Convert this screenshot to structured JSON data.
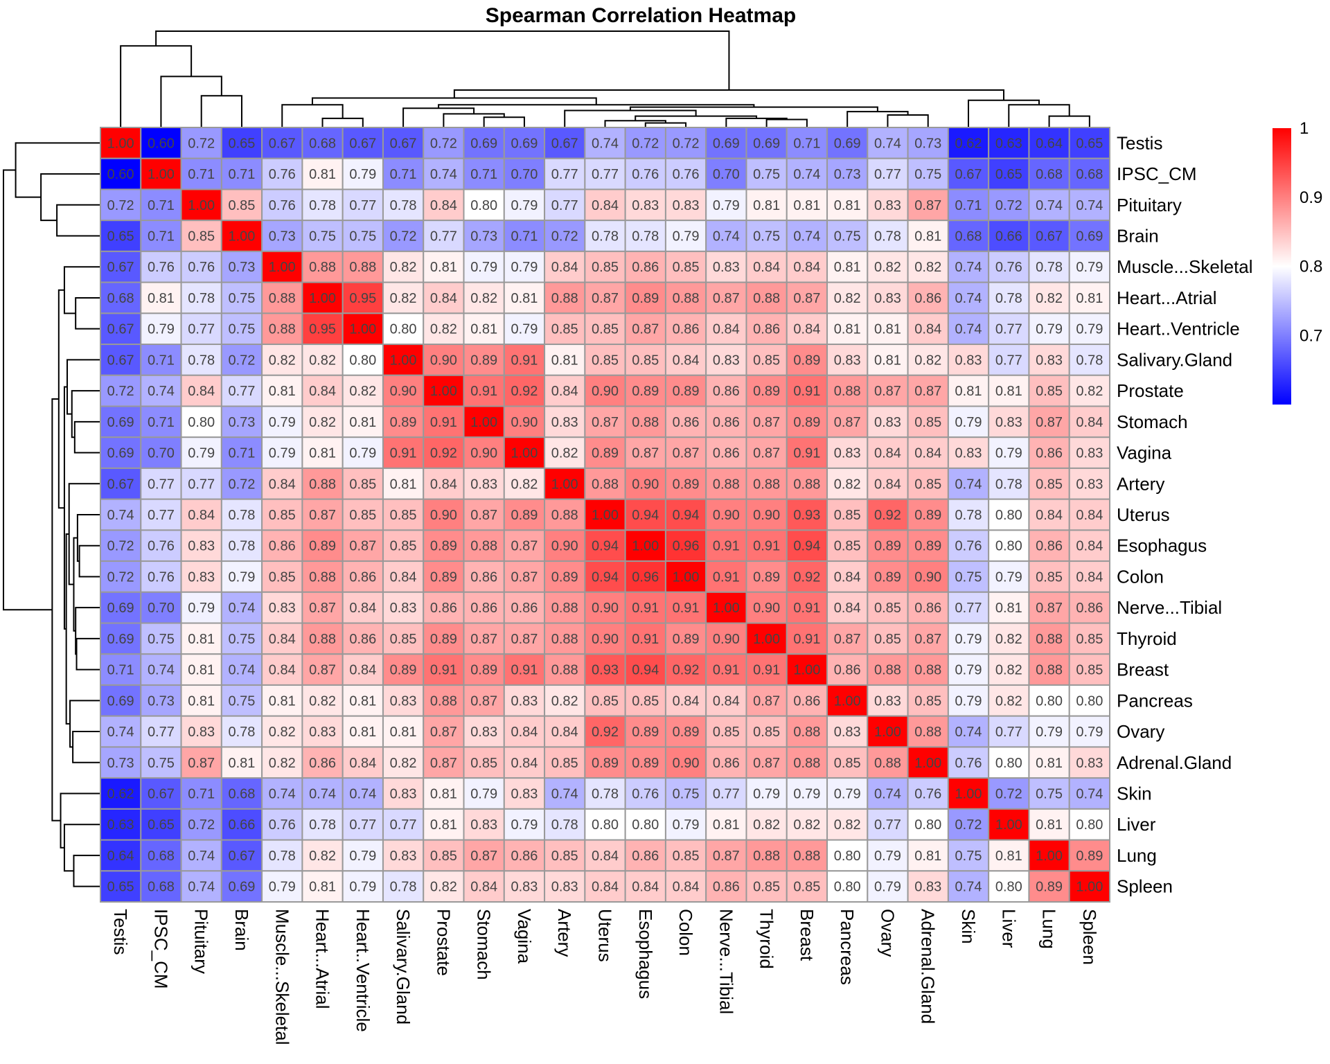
{
  "chart_data": {
    "type": "heatmap",
    "title": "Spearman Correlation Heatmap",
    "xlabel": "",
    "ylabel": "",
    "labels": [
      "Testis",
      "IPSC_CM",
      "Pituitary",
      "Brain",
      "Muscle...Skeletal",
      "Heart...Atrial",
      "Heart..Ventricle",
      "Salivary.Gland",
      "Prostate",
      "Stomach",
      "Vagina",
      "Artery",
      "Uterus",
      "Esophagus",
      "Colon",
      "Nerve...Tibial",
      "Thyroid",
      "Breast",
      "Pancreas",
      "Ovary",
      "Adrenal.Gland",
      "Skin",
      "Liver",
      "Lung",
      "Spleen"
    ],
    "values": [
      [
        1.0,
        0.6,
        0.72,
        0.65,
        0.67,
        0.68,
        0.67,
        0.67,
        0.72,
        0.69,
        0.69,
        0.67,
        0.74,
        0.72,
        0.72,
        0.69,
        0.69,
        0.71,
        0.69,
        0.74,
        0.73,
        0.62,
        0.63,
        0.64,
        0.65
      ],
      [
        0.6,
        1.0,
        0.71,
        0.71,
        0.76,
        0.81,
        0.79,
        0.71,
        0.74,
        0.71,
        0.7,
        0.77,
        0.77,
        0.76,
        0.76,
        0.7,
        0.75,
        0.74,
        0.73,
        0.77,
        0.75,
        0.67,
        0.65,
        0.68,
        0.68
      ],
      [
        0.72,
        0.71,
        1.0,
        0.85,
        0.76,
        0.78,
        0.77,
        0.78,
        0.84,
        0.8,
        0.79,
        0.77,
        0.84,
        0.83,
        0.83,
        0.79,
        0.81,
        0.81,
        0.81,
        0.83,
        0.87,
        0.71,
        0.72,
        0.74,
        0.74
      ],
      [
        0.65,
        0.71,
        0.85,
        1.0,
        0.73,
        0.75,
        0.75,
        0.72,
        0.77,
        0.73,
        0.71,
        0.72,
        0.78,
        0.78,
        0.79,
        0.74,
        0.75,
        0.74,
        0.75,
        0.78,
        0.81,
        0.68,
        0.66,
        0.67,
        0.69
      ],
      [
        0.67,
        0.76,
        0.76,
        0.73,
        1.0,
        0.88,
        0.88,
        0.82,
        0.81,
        0.79,
        0.79,
        0.84,
        0.85,
        0.86,
        0.85,
        0.83,
        0.84,
        0.84,
        0.81,
        0.82,
        0.82,
        0.74,
        0.76,
        0.78,
        0.79
      ],
      [
        0.68,
        0.81,
        0.78,
        0.75,
        0.88,
        1.0,
        0.95,
        0.82,
        0.84,
        0.82,
        0.81,
        0.88,
        0.87,
        0.89,
        0.88,
        0.87,
        0.88,
        0.87,
        0.82,
        0.83,
        0.86,
        0.74,
        0.78,
        0.82,
        0.81
      ],
      [
        0.67,
        0.79,
        0.77,
        0.75,
        0.88,
        0.95,
        1.0,
        0.8,
        0.82,
        0.81,
        0.79,
        0.85,
        0.85,
        0.87,
        0.86,
        0.84,
        0.86,
        0.84,
        0.81,
        0.81,
        0.84,
        0.74,
        0.77,
        0.79,
        0.79
      ],
      [
        0.67,
        0.71,
        0.78,
        0.72,
        0.82,
        0.82,
        0.8,
        1.0,
        0.9,
        0.89,
        0.91,
        0.81,
        0.85,
        0.85,
        0.84,
        0.83,
        0.85,
        0.89,
        0.83,
        0.81,
        0.82,
        0.83,
        0.77,
        0.83,
        0.78
      ],
      [
        0.72,
        0.74,
        0.84,
        0.77,
        0.81,
        0.84,
        0.82,
        0.9,
        1.0,
        0.91,
        0.92,
        0.84,
        0.9,
        0.89,
        0.89,
        0.86,
        0.89,
        0.91,
        0.88,
        0.87,
        0.87,
        0.81,
        0.81,
        0.85,
        0.82
      ],
      [
        0.69,
        0.71,
        0.8,
        0.73,
        0.79,
        0.82,
        0.81,
        0.89,
        0.91,
        1.0,
        0.9,
        0.83,
        0.87,
        0.88,
        0.86,
        0.86,
        0.87,
        0.89,
        0.87,
        0.83,
        0.85,
        0.79,
        0.83,
        0.87,
        0.84
      ],
      [
        0.69,
        0.7,
        0.79,
        0.71,
        0.79,
        0.81,
        0.79,
        0.91,
        0.92,
        0.9,
        1.0,
        0.82,
        0.89,
        0.87,
        0.87,
        0.86,
        0.87,
        0.91,
        0.83,
        0.84,
        0.84,
        0.83,
        0.79,
        0.86,
        0.83
      ],
      [
        0.67,
        0.77,
        0.77,
        0.72,
        0.84,
        0.88,
        0.85,
        0.81,
        0.84,
        0.83,
        0.82,
        1.0,
        0.88,
        0.9,
        0.89,
        0.88,
        0.88,
        0.88,
        0.82,
        0.84,
        0.85,
        0.74,
        0.78,
        0.85,
        0.83
      ],
      [
        0.74,
        0.77,
        0.84,
        0.78,
        0.85,
        0.87,
        0.85,
        0.85,
        0.9,
        0.87,
        0.89,
        0.88,
        1.0,
        0.94,
        0.94,
        0.9,
        0.9,
        0.93,
        0.85,
        0.92,
        0.89,
        0.78,
        0.8,
        0.84,
        0.84
      ],
      [
        0.72,
        0.76,
        0.83,
        0.78,
        0.86,
        0.89,
        0.87,
        0.85,
        0.89,
        0.88,
        0.87,
        0.9,
        0.94,
        1.0,
        0.96,
        0.91,
        0.91,
        0.94,
        0.85,
        0.89,
        0.89,
        0.76,
        0.8,
        0.86,
        0.84
      ],
      [
        0.72,
        0.76,
        0.83,
        0.79,
        0.85,
        0.88,
        0.86,
        0.84,
        0.89,
        0.86,
        0.87,
        0.89,
        0.94,
        0.96,
        1.0,
        0.91,
        0.89,
        0.92,
        0.84,
        0.89,
        0.9,
        0.75,
        0.79,
        0.85,
        0.84
      ],
      [
        0.69,
        0.7,
        0.79,
        0.74,
        0.83,
        0.87,
        0.84,
        0.83,
        0.86,
        0.86,
        0.86,
        0.88,
        0.9,
        0.91,
        0.91,
        1.0,
        0.9,
        0.91,
        0.84,
        0.85,
        0.86,
        0.77,
        0.81,
        0.87,
        0.86
      ],
      [
        0.69,
        0.75,
        0.81,
        0.75,
        0.84,
        0.88,
        0.86,
        0.85,
        0.89,
        0.87,
        0.87,
        0.88,
        0.9,
        0.91,
        0.89,
        0.9,
        1.0,
        0.91,
        0.87,
        0.85,
        0.87,
        0.79,
        0.82,
        0.88,
        0.85
      ],
      [
        0.71,
        0.74,
        0.81,
        0.74,
        0.84,
        0.87,
        0.84,
        0.89,
        0.91,
        0.89,
        0.91,
        0.88,
        0.93,
        0.94,
        0.92,
        0.91,
        0.91,
        1.0,
        0.86,
        0.88,
        0.88,
        0.79,
        0.82,
        0.88,
        0.85
      ],
      [
        0.69,
        0.73,
        0.81,
        0.75,
        0.81,
        0.82,
        0.81,
        0.83,
        0.88,
        0.87,
        0.83,
        0.82,
        0.85,
        0.85,
        0.84,
        0.84,
        0.87,
        0.86,
        1.0,
        0.83,
        0.85,
        0.79,
        0.82,
        0.8,
        0.8
      ],
      [
        0.74,
        0.77,
        0.83,
        0.78,
        0.82,
        0.83,
        0.81,
        0.81,
        0.87,
        0.83,
        0.84,
        0.84,
        0.92,
        0.89,
        0.89,
        0.85,
        0.85,
        0.88,
        0.83,
        1.0,
        0.88,
        0.74,
        0.77,
        0.79,
        0.79
      ],
      [
        0.73,
        0.75,
        0.87,
        0.81,
        0.82,
        0.86,
        0.84,
        0.82,
        0.87,
        0.85,
        0.84,
        0.85,
        0.89,
        0.89,
        0.9,
        0.86,
        0.87,
        0.88,
        0.85,
        0.88,
        1.0,
        0.76,
        0.8,
        0.81,
        0.83
      ],
      [
        0.62,
        0.67,
        0.71,
        0.68,
        0.74,
        0.74,
        0.74,
        0.83,
        0.81,
        0.79,
        0.83,
        0.74,
        0.78,
        0.76,
        0.75,
        0.77,
        0.79,
        0.79,
        0.79,
        0.74,
        0.76,
        1.0,
        0.72,
        0.75,
        0.74
      ],
      [
        0.63,
        0.65,
        0.72,
        0.66,
        0.76,
        0.78,
        0.77,
        0.77,
        0.81,
        0.83,
        0.79,
        0.78,
        0.8,
        0.8,
        0.79,
        0.81,
        0.82,
        0.82,
        0.82,
        0.77,
        0.8,
        0.72,
        1.0,
        0.81,
        0.8
      ],
      [
        0.64,
        0.68,
        0.74,
        0.67,
        0.78,
        0.82,
        0.79,
        0.83,
        0.85,
        0.87,
        0.86,
        0.85,
        0.84,
        0.86,
        0.85,
        0.87,
        0.88,
        0.88,
        0.8,
        0.79,
        0.81,
        0.75,
        0.81,
        1.0,
        0.89
      ],
      [
        0.65,
        0.68,
        0.74,
        0.69,
        0.79,
        0.81,
        0.79,
        0.78,
        0.82,
        0.84,
        0.83,
        0.83,
        0.84,
        0.84,
        0.84,
        0.86,
        0.85,
        0.85,
        0.8,
        0.79,
        0.83,
        0.74,
        0.8,
        0.89,
        1.0
      ]
    ],
    "value_format": "2 decimals",
    "color_scale": {
      "min": 0.6,
      "mid": 0.8,
      "max": 1.0,
      "low_color": "#0000FF",
      "mid_color": "#FFFFFF",
      "high_color": "#FF0000"
    },
    "legend": {
      "position": "right",
      "ticks": [
        "1",
        "0.9",
        "0.8",
        "0.7"
      ],
      "tick_values": [
        1.0,
        0.9,
        0.8,
        0.7
      ]
    },
    "dendrogram": {
      "rows": true,
      "columns": true
    },
    "grid": true,
    "cell_border_color": "#999999"
  }
}
